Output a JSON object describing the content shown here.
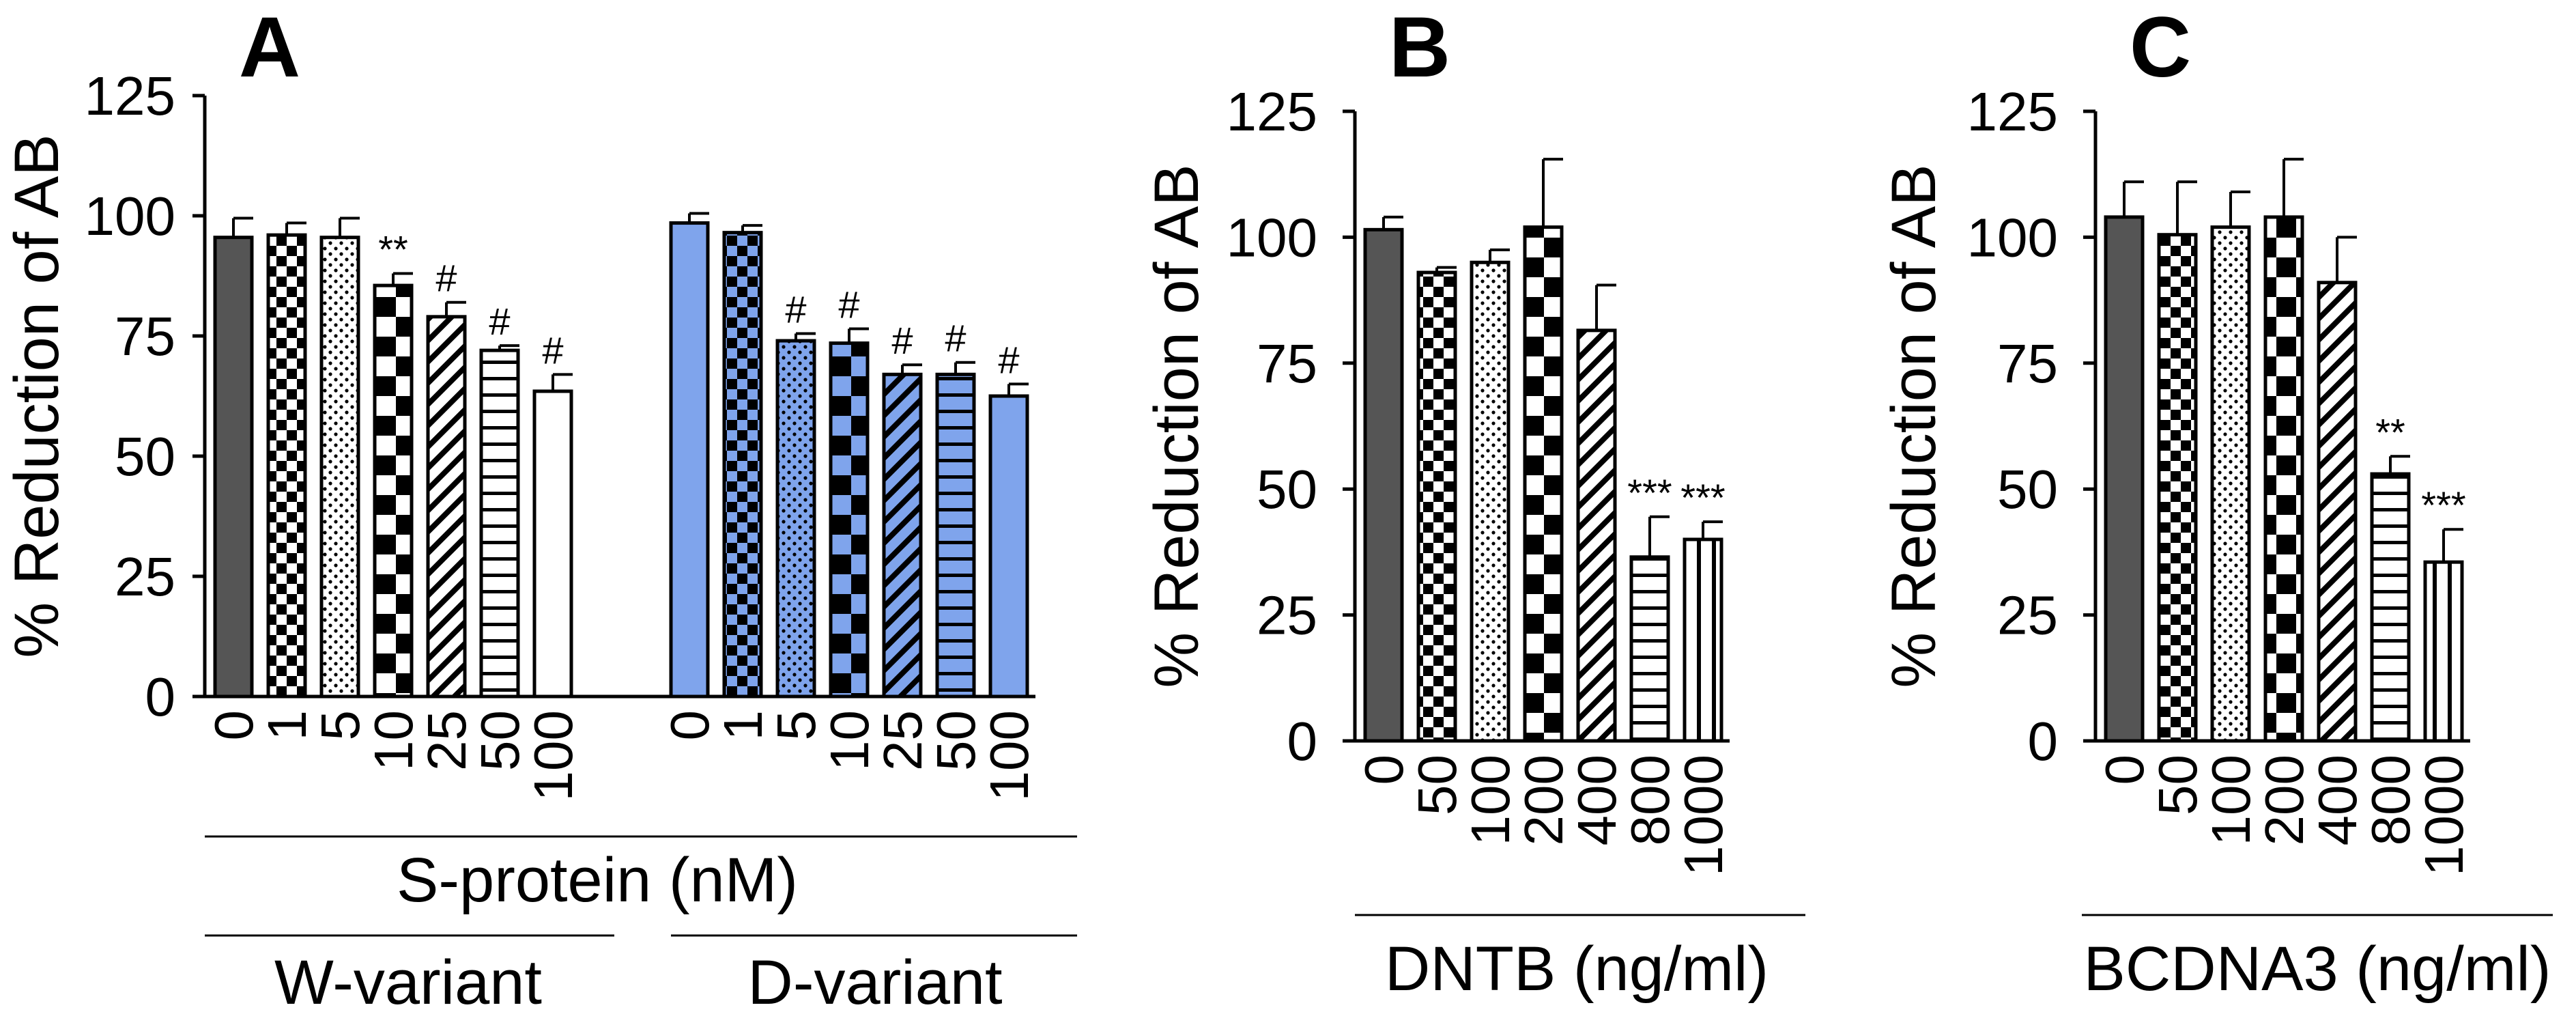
{
  "colors": {
    "gray": "#555555",
    "blue": "#7fa4ec",
    "black": "#000000",
    "white": "#ffffff"
  },
  "chart_data": [
    {
      "type": "bar",
      "panel": "A",
      "ylabel": "% Reduction of AB",
      "ylim": [
        0,
        125
      ],
      "yticks": [
        "0",
        "25",
        "50",
        "75",
        "100",
        "125"
      ],
      "xlabel": "S-protein (nM)",
      "groups": [
        {
          "name": "W-variant",
          "categories": [
            "0",
            "1",
            "5",
            "10",
            "25",
            "50",
            "100"
          ],
          "values": [
            95.5,
            96,
            95.5,
            85.5,
            79,
            72,
            63.5
          ],
          "errors": [
            4,
            2.5,
            4,
            2.5,
            3,
            1,
            3.5
          ],
          "significance": [
            "",
            "",
            "",
            "**",
            "#",
            "#",
            "#"
          ],
          "base_color": "#ffffff",
          "patterns": [
            "solid-gray",
            "checker",
            "dots",
            "checker-large",
            "diagonal",
            "horizontal",
            "plain"
          ]
        },
        {
          "name": "D-variant",
          "categories": [
            "0",
            "1",
            "5",
            "10",
            "25",
            "50",
            "100"
          ],
          "values": [
            98.5,
            96.5,
            74,
            73.5,
            67,
            67,
            62.5
          ],
          "errors": [
            2,
            1.5,
            1.5,
            3,
            2,
            2.5,
            2.5
          ],
          "significance": [
            "",
            "",
            "#",
            "#",
            "#",
            "#",
            "#"
          ],
          "base_color": "#7fa4ec",
          "patterns": [
            "solid",
            "checker",
            "dots",
            "checker-large",
            "diagonal",
            "horizontal",
            "plain"
          ]
        }
      ]
    },
    {
      "type": "bar",
      "panel": "B",
      "ylabel": "% Reduction of AB",
      "ylim": [
        0,
        125
      ],
      "yticks": [
        "0",
        "25",
        "50",
        "75",
        "100",
        "125"
      ],
      "xlabel": "DNTB (ng/ml)",
      "categories": [
        "0",
        "50",
        "100",
        "200",
        "400",
        "800",
        "1000"
      ],
      "values": [
        101.5,
        93,
        95,
        102,
        81.5,
        36.5,
        40
      ],
      "errors": [
        2.5,
        1,
        2.5,
        13.5,
        9,
        8,
        3.5
      ],
      "significance": [
        "",
        "",
        "",
        "",
        "",
        "***",
        "***"
      ],
      "patterns": [
        "solid-gray",
        "checker",
        "dots",
        "checker-large",
        "diagonal",
        "horizontal",
        "vertical"
      ]
    },
    {
      "type": "bar",
      "panel": "C",
      "ylabel": "% Reduction of AB",
      "ylim": [
        0,
        125
      ],
      "yticks": [
        "0",
        "25",
        "50",
        "75",
        "100",
        "125"
      ],
      "xlabel": "BCDNA3 (ng/ml)",
      "categories": [
        "0",
        "50",
        "100",
        "200",
        "400",
        "800",
        "1000"
      ],
      "values": [
        104,
        100.5,
        102,
        104,
        91,
        53,
        35.5
      ],
      "errors": [
        7,
        10.5,
        7,
        11.5,
        9,
        3.5,
        6.5
      ],
      "significance": [
        "",
        "",
        "",
        "",
        "",
        "**",
        "***"
      ],
      "patterns": [
        "solid-gray",
        "checker",
        "dots",
        "checker-large",
        "diagonal",
        "horizontal",
        "vertical"
      ]
    }
  ]
}
